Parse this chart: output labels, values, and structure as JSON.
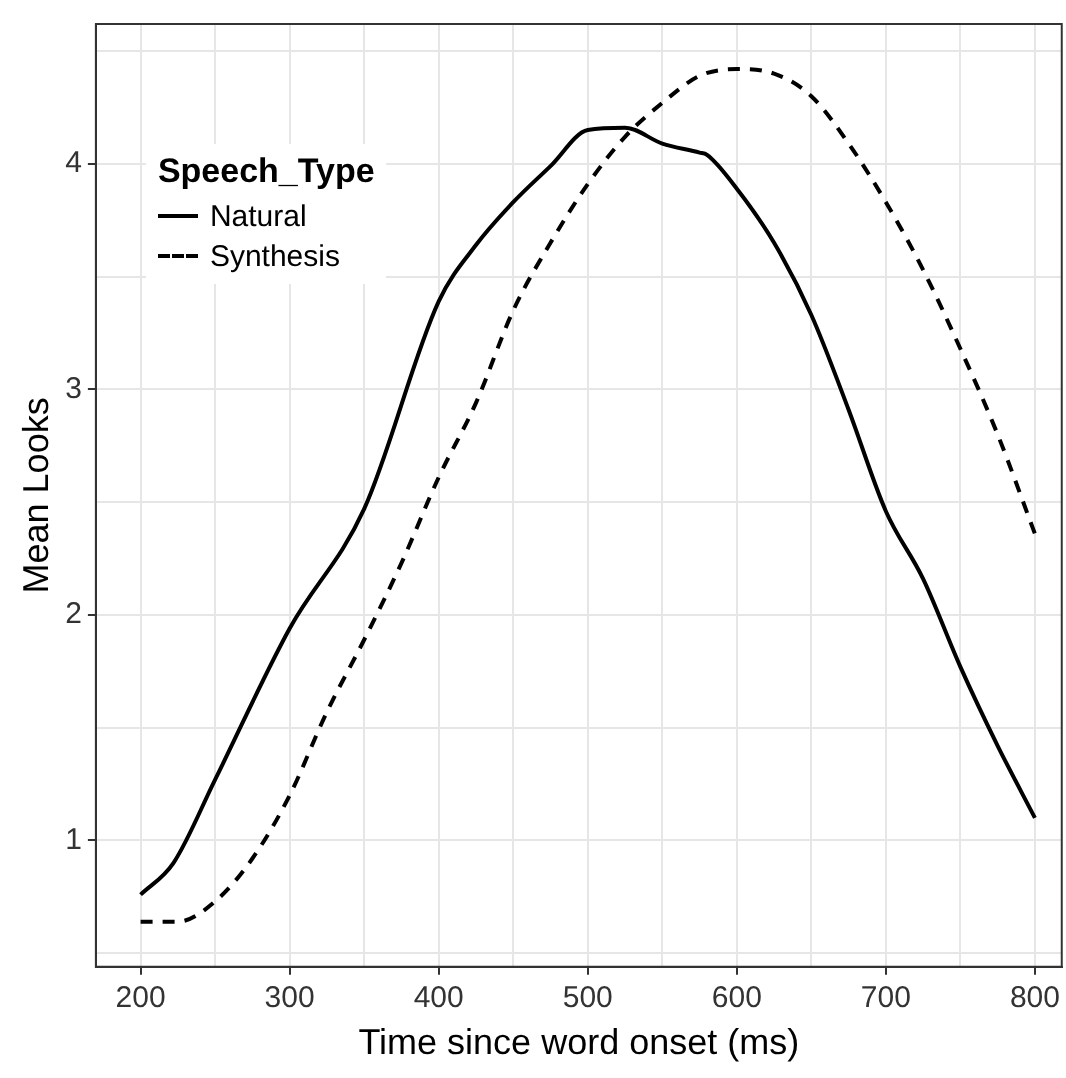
{
  "chart_data": {
    "type": "line",
    "xlabel": "Time since word onset (ms)",
    "ylabel": "Mean Looks",
    "legend_title": "Speech_Type",
    "legend": "top left",
    "grid": true,
    "marker": "none",
    "xlim": [
      170,
      818
    ],
    "xticks": [
      200,
      {
        "value": 250,
        "label": null
      },
      300,
      {
        "value": 350,
        "label": null
      },
      400,
      {
        "value": 450,
        "label": null
      },
      500,
      {
        "value": 550,
        "label": null
      },
      600,
      {
        "value": 650,
        "label": null
      },
      700,
      {
        "value": 750,
        "label": null
      },
      800
    ],
    "ylim": [
      0.44,
      4.62
    ],
    "yticks": [
      {
        "value": 0.5,
        "label": null
      },
      1,
      {
        "value": 1.5,
        "label": null
      },
      2,
      {
        "value": 2.5,
        "label": null
      },
      3,
      {
        "value": 3.5,
        "label": null
      },
      4,
      {
        "value": 4.5,
        "label": null
      }
    ],
    "series": [
      {
        "name": "Natural",
        "color": "#000000",
        "line_style": "solid",
        "x": [
          200,
          222,
          250,
          300,
          350,
          400,
          425,
          450,
          475,
          500,
          525,
          550,
          575,
          580,
          600,
          625,
          650,
          675,
          700,
          725,
          750,
          775,
          800
        ],
        "values": [
          0.76,
          0.9,
          1.27,
          1.94,
          2.47,
          3.39,
          3.64,
          3.83,
          3.99,
          4.15,
          4.16,
          4.09,
          4.05,
          4.04,
          3.89,
          3.65,
          3.33,
          2.91,
          2.46,
          2.16,
          1.77,
          1.42,
          1.1
        ]
      },
      {
        "name": "Synthesis",
        "color": "#000000",
        "line_style": "dashed",
        "x": [
          200,
          225,
          250,
          275,
          300,
          325,
          350,
          375,
          400,
          425,
          450,
          475,
          500,
          525,
          550,
          575,
          600,
          625,
          650,
          675,
          700,
          725,
          750,
          775,
          800
        ],
        "values": [
          0.64,
          0.64,
          0.73,
          0.92,
          1.2,
          1.57,
          1.89,
          2.23,
          2.61,
          2.94,
          3.35,
          3.65,
          3.91,
          4.12,
          4.27,
          4.39,
          4.42,
          4.4,
          4.3,
          4.09,
          3.83,
          3.53,
          3.18,
          2.8,
          2.36
        ]
      }
    ]
  }
}
